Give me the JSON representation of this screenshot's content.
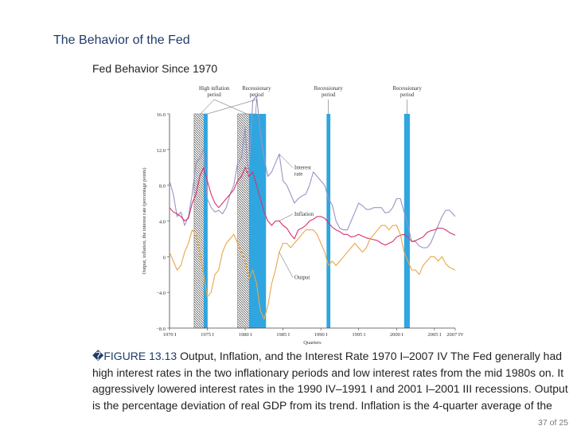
{
  "slide": {
    "title": "The Behavior of the Fed",
    "heading": "Fed Behavior Since 1970"
  },
  "caption": {
    "figure_label": "FIGURE 13.13",
    "figure_glyph": "�",
    "figure_title": "Output, Inflation, and the Interest Rate 1970 I–2007 IV",
    "body": "The Fed generally had high interest rates in the two inflationary periods and low interest rates from the mid 1980s on. It aggressively lowered interest rates in the 1990 IV–1991 I and 2001 I–2001 III recessions. Output is the percentage deviation of real GDP from its trend. Inflation is the 4-quarter average of the"
  },
  "page": {
    "number": "37",
    "of_label": "of",
    "total": "25"
  },
  "chart_data": {
    "type": "line",
    "ylabel": "Output, inflation, the interest rate (percentage points)",
    "xlabel": "Quarters",
    "ylim": [
      -8,
      16
    ],
    "yticks": [
      "16.0",
      "12.0",
      "8.0",
      "4.0",
      "0",
      "−4.0",
      "−8.0"
    ],
    "ytick_values": [
      16,
      12,
      8,
      4,
      0,
      -4,
      -8
    ],
    "xlim": [
      1970.0,
      2007.75
    ],
    "xticks": [
      "1970 I",
      "1975 I",
      "1980 I",
      "1985 I",
      "1990 I",
      "1995 I",
      "2000 I",
      "2005 I",
      "2007 IV"
    ],
    "xtick_values": [
      1970.0,
      1975.0,
      1980.0,
      1985.0,
      1990.0,
      1995.0,
      2000.0,
      2005.0,
      2007.75
    ],
    "periods": [
      {
        "label": "High inflation period",
        "kind": "high-inflation",
        "start": 1973.25,
        "end": 1975.0
      },
      {
        "label": "High inflation period",
        "kind": "high-inflation",
        "start": 1979.0,
        "end": 1981.5
      },
      {
        "label": "Recessionary period",
        "kind": "recession",
        "start": 1974.5,
        "end": 1975.0
      },
      {
        "label": "Recessionary period",
        "kind": "recession",
        "start": 1980.5,
        "end": 1982.75
      },
      {
        "label": "Recessionary period",
        "kind": "recession",
        "start": 1990.75,
        "end": 1991.25
      },
      {
        "label": "Recessionary period",
        "kind": "recession",
        "start": 2001.0,
        "end": 2001.75
      }
    ],
    "period_labels": [
      {
        "text": "High inflation period",
        "at": 1975.9,
        "targets": [
          1974.1,
          1980.2
        ]
      },
      {
        "text": "Recessionary period",
        "at": 1981.5,
        "targets": [
          1975.0,
          1981.4
        ]
      },
      {
        "text": "Recessionary period",
        "at": 1991.0,
        "targets": [
          1991.0
        ]
      },
      {
        "text": "Recessionary period",
        "at": 2001.4,
        "targets": [
          2001.4
        ]
      }
    ],
    "series": [
      {
        "name": "Interest rate",
        "color": "#9a93c4",
        "label_at": [
          1986.5,
          9.8
        ],
        "x": [
          1970,
          1970.5,
          1971,
          1971.5,
          1972,
          1972.5,
          1973,
          1973.5,
          1974,
          1974.5,
          1975,
          1975.5,
          1976,
          1976.5,
          1977,
          1977.5,
          1978,
          1978.5,
          1979,
          1979.5,
          1980,
          1980.25,
          1980.5,
          1981,
          1981.5,
          1982,
          1982.5,
          1983,
          1983.5,
          1984,
          1984.5,
          1985,
          1985.5,
          1986,
          1986.5,
          1987,
          1987.5,
          1988,
          1988.5,
          1989,
          1989.5,
          1990,
          1990.5,
          1991,
          1991.5,
          1992,
          1992.5,
          1993,
          1993.5,
          1994,
          1994.5,
          1995,
          1995.5,
          1996,
          1996.5,
          1997,
          1997.5,
          1998,
          1998.5,
          1999,
          1999.5,
          2000,
          2000.5,
          2001,
          2001.5,
          2002,
          2002.5,
          2003,
          2003.5,
          2004,
          2004.5,
          2005,
          2005.5,
          2006,
          2006.5,
          2007,
          2007.75
        ],
        "y": [
          8.5,
          7.0,
          4.5,
          5.0,
          3.5,
          4.5,
          7.0,
          10.5,
          11.0,
          12.0,
          6.5,
          5.5,
          5.0,
          5.2,
          4.8,
          5.5,
          7.0,
          8.0,
          10.5,
          11.0,
          14.5,
          10.5,
          9.5,
          17.5,
          18.0,
          14.0,
          11.0,
          9.0,
          9.5,
          10.5,
          11.5,
          8.5,
          8.0,
          7.0,
          6.0,
          6.5,
          6.8,
          7.0,
          8.0,
          9.5,
          9.0,
          8.5,
          8.0,
          6.5,
          5.8,
          4.0,
          3.2,
          3.0,
          3.0,
          4.0,
          5.0,
          6.0,
          5.7,
          5.3,
          5.3,
          5.5,
          5.5,
          5.5,
          4.9,
          5.0,
          5.5,
          6.5,
          6.5,
          5.0,
          3.5,
          1.7,
          1.7,
          1.2,
          1.0,
          1.0,
          1.5,
          2.5,
          3.5,
          4.5,
          5.2,
          5.2,
          4.5
        ]
      },
      {
        "name": "Inflation",
        "color": "#d6336c",
        "label_at": [
          1986.5,
          4.6
        ],
        "x": [
          1970,
          1970.5,
          1971,
          1971.5,
          1972,
          1972.5,
          1973,
          1973.5,
          1974,
          1974.5,
          1975,
          1975.5,
          1976,
          1976.5,
          1977,
          1977.5,
          1978,
          1978.5,
          1979,
          1979.5,
          1980,
          1980.5,
          1981,
          1981.5,
          1982,
          1982.5,
          1983,
          1983.5,
          1984,
          1984.5,
          1985,
          1985.5,
          1986,
          1986.5,
          1987,
          1987.5,
          1988,
          1988.5,
          1989,
          1989.5,
          1990,
          1990.5,
          1991,
          1991.5,
          1992,
          1992.5,
          1993,
          1993.5,
          1994,
          1994.5,
          1995,
          1995.5,
          1996,
          1996.5,
          1997,
          1997.5,
          1998,
          1998.5,
          1999,
          1999.5,
          2000,
          2000.5,
          2001,
          2001.5,
          2002,
          2002.5,
          2003,
          2003.5,
          2004,
          2004.5,
          2005,
          2005.5,
          2006,
          2006.5,
          2007,
          2007.75
        ],
        "y": [
          5.5,
          5.0,
          4.8,
          4.5,
          4.0,
          4.3,
          6.0,
          7.0,
          9.0,
          10.0,
          8.5,
          7.0,
          6.0,
          5.5,
          6.0,
          6.5,
          7.0,
          7.5,
          8.5,
          9.0,
          10.0,
          9.0,
          9.5,
          8.0,
          6.5,
          5.0,
          4.0,
          3.5,
          4.0,
          4.0,
          3.5,
          3.2,
          2.5,
          2.0,
          3.0,
          3.2,
          3.5,
          4.0,
          4.2,
          4.5,
          4.5,
          4.3,
          3.8,
          3.3,
          3.0,
          2.8,
          2.5,
          2.5,
          2.2,
          2.3,
          2.5,
          2.3,
          2.1,
          2.0,
          1.9,
          1.8,
          1.5,
          1.3,
          1.5,
          1.7,
          2.2,
          2.4,
          2.5,
          2.2,
          1.7,
          1.8,
          2.0,
          2.2,
          2.7,
          2.9,
          3.0,
          3.2,
          3.2,
          3.0,
          2.7,
          2.4
        ]
      },
      {
        "name": "Output",
        "color": "#e8a848",
        "label_at": [
          1986.5,
          -2.5
        ],
        "x": [
          1970,
          1970.5,
          1971,
          1971.5,
          1972,
          1972.5,
          1973,
          1973.5,
          1974,
          1974.5,
          1975,
          1975.5,
          1976,
          1976.5,
          1977,
          1977.5,
          1978,
          1978.5,
          1979,
          1979.5,
          1980,
          1980.5,
          1981,
          1981.5,
          1982,
          1982.5,
          1983,
          1983.5,
          1984,
          1984.5,
          1985,
          1985.5,
          1986,
          1986.5,
          1987,
          1987.5,
          1988,
          1988.5,
          1989,
          1989.5,
          1990,
          1990.5,
          1991,
          1991.5,
          1992,
          1992.5,
          1993,
          1993.5,
          1994,
          1994.5,
          1995,
          1995.5,
          1996,
          1996.5,
          1997,
          1997.5,
          1998,
          1998.5,
          1999,
          1999.5,
          2000,
          2000.5,
          2001,
          2001.5,
          2002,
          2002.5,
          2003,
          2003.5,
          2004,
          2004.5,
          2005,
          2005.5,
          2006,
          2006.5,
          2007,
          2007.75
        ],
        "y": [
          0.5,
          -0.5,
          -1.5,
          -1.0,
          0.5,
          1.5,
          3.0,
          2.5,
          0.5,
          -2.0,
          -4.5,
          -4.0,
          -2.0,
          -1.5,
          0.5,
          1.5,
          2.0,
          2.5,
          1.5,
          0.5,
          -0.5,
          -2.5,
          -1.5,
          -3.0,
          -6.0,
          -7.0,
          -5.5,
          -3.0,
          -1.5,
          0.5,
          1.5,
          1.5,
          1.0,
          1.5,
          2.0,
          2.5,
          3.0,
          3.0,
          3.0,
          2.5,
          1.5,
          0.5,
          -1.0,
          -0.5,
          -1.0,
          -0.5,
          0.0,
          0.5,
          1.0,
          1.5,
          1.0,
          0.5,
          1.0,
          2.0,
          2.5,
          3.0,
          3.5,
          3.5,
          3.0,
          3.5,
          3.5,
          2.5,
          0.5,
          -0.5,
          -1.5,
          -1.5,
          -2.0,
          -1.0,
          -0.5,
          0.0,
          0.0,
          -0.5,
          0.0,
          -0.8,
          -1.2,
          -1.5
        ]
      }
    ]
  }
}
